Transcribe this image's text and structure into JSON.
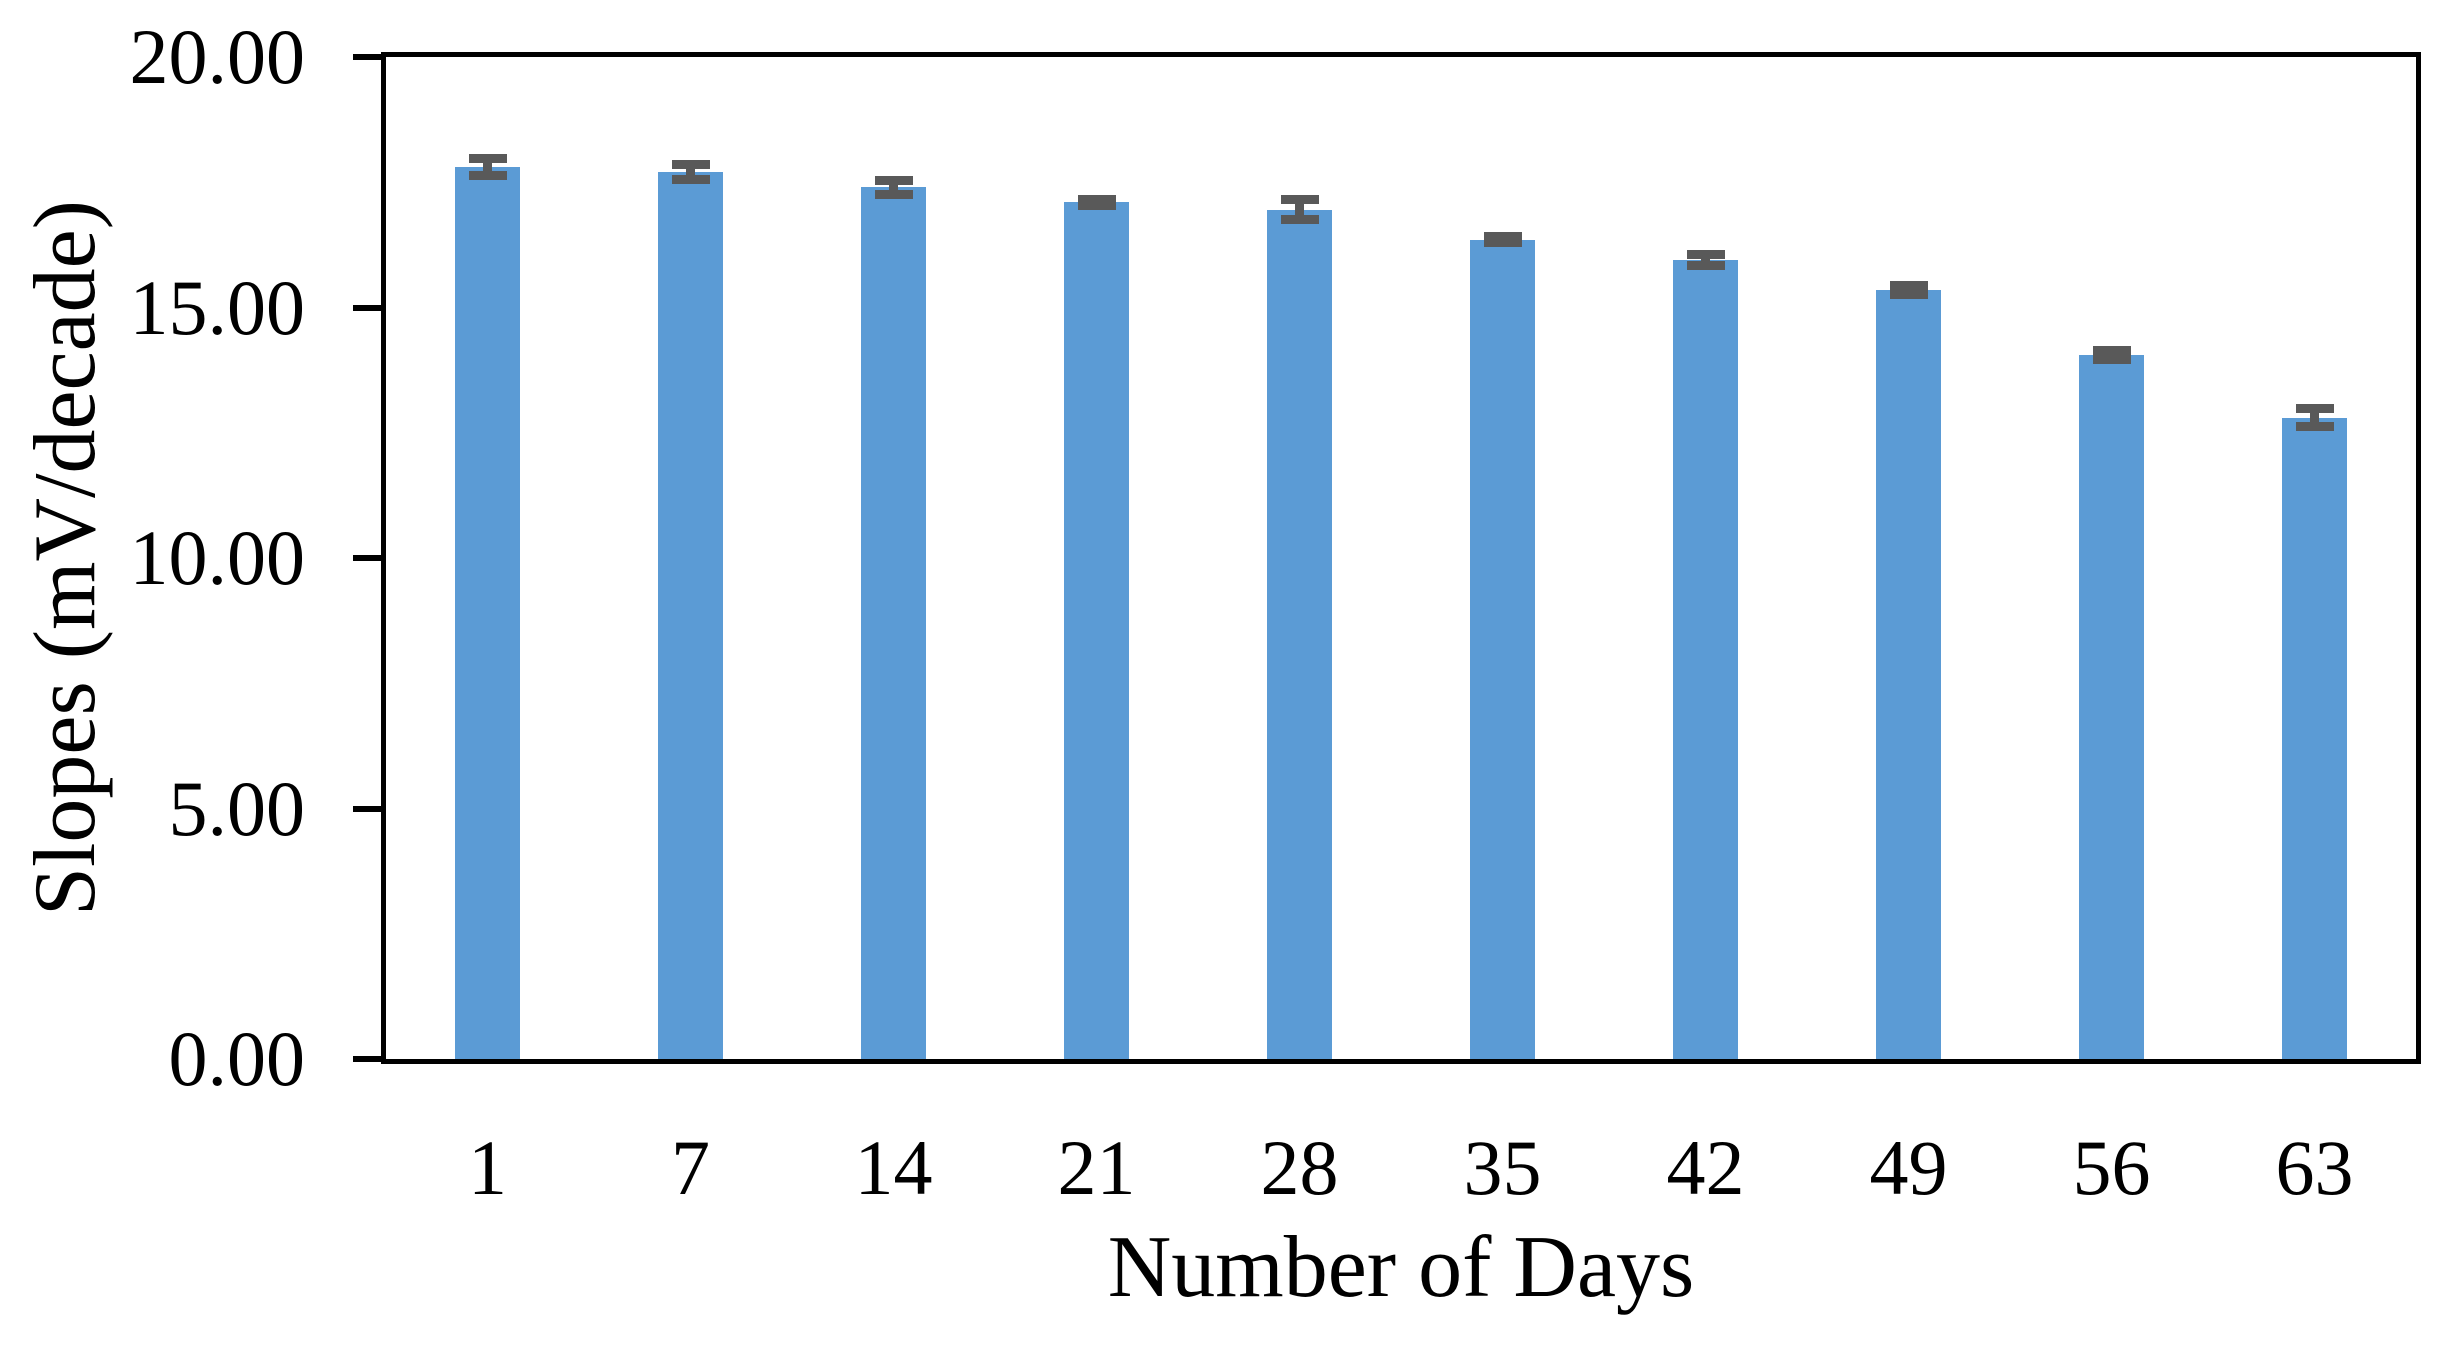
{
  "figure": {
    "background": "#ffffff"
  },
  "chart_data": {
    "type": "bar",
    "title": "",
    "xlabel": "Number of Days",
    "ylabel": "Slopes (mV/decade)",
    "categories": [
      "1",
      "7",
      "14",
      "21",
      "28",
      "35",
      "42",
      "49",
      "56",
      "63"
    ],
    "series": [
      {
        "name": "Slopes (mV/decade)",
        "values": [
          17.8,
          17.7,
          17.4,
          17.1,
          16.95,
          16.35,
          15.95,
          15.35,
          14.05,
          12.8
        ],
        "errors": [
          0.17,
          0.15,
          0.14,
          0.06,
          0.2,
          0.06,
          0.11,
          0.09,
          0.09,
          0.18
        ]
      }
    ],
    "ylim": [
      0,
      20
    ],
    "yticks": [
      20,
      15,
      10,
      5,
      0
    ],
    "ytick_labels": [
      "20.00",
      "15.00",
      "10.00",
      "5.00",
      "0.00"
    ],
    "grid": false,
    "legend": "none",
    "frame": true,
    "error_bars": "both-ends-with-caps",
    "bar_color": "#5B9BD5",
    "error_bar_color": "#595959",
    "axis_color": "#000000",
    "text_color": "#000000"
  }
}
